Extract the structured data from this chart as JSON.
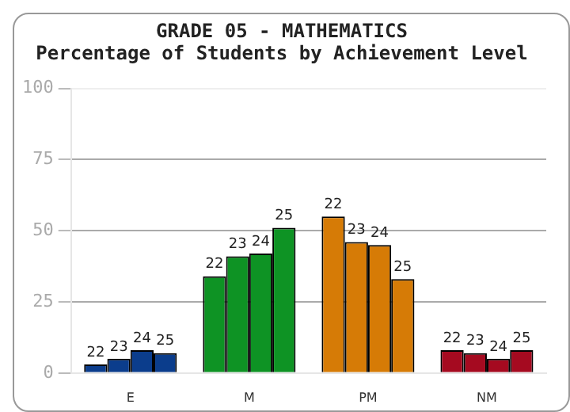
{
  "chart_data": {
    "type": "bar",
    "title": "GRADE 05 - MATHEMATICS",
    "subtitle": "Percentage of Students by Achievement Level",
    "categories": [
      "E",
      "M",
      "PM",
      "NM"
    ],
    "series": [
      {
        "name": "22",
        "colors": [
          "#0b3d8c",
          "#0e9324",
          "#d67b06",
          "#a50a20"
        ],
        "values": [
          3,
          34,
          55,
          8
        ]
      },
      {
        "name": "23",
        "colors": [
          "#0b3d8c",
          "#0e9324",
          "#d67b06",
          "#a50a20"
        ],
        "values": [
          5,
          41,
          46,
          7
        ]
      },
      {
        "name": "24",
        "colors": [
          "#0b3d8c",
          "#0e9324",
          "#d67b06",
          "#a50a20"
        ],
        "values": [
          8,
          42,
          45,
          5
        ]
      },
      {
        "name": "25",
        "colors": [
          "#0b3d8c",
          "#0e9324",
          "#d67b06",
          "#a50a20"
        ],
        "values": [
          7,
          51,
          33,
          8
        ]
      }
    ],
    "ylim": [
      0,
      100
    ],
    "yticks": [
      0,
      25,
      50,
      75,
      100
    ],
    "grid": "y",
    "legend": false
  }
}
